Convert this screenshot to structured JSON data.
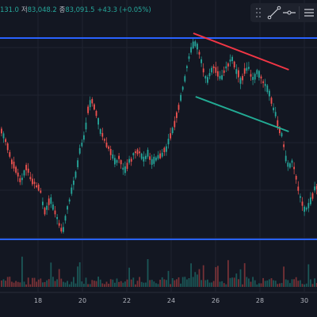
{
  "legend": {
    "value1": "131.0",
    "value2_label": "저",
    "value2": "83,048.2",
    "value3_label": "종",
    "value3": "83,091.5",
    "change": "+43.3 (+0.05%)"
  },
  "toolbar": {
    "items": [
      {
        "icon": "drag-handle-icon"
      },
      {
        "icon": "trend-line-icon"
      },
      {
        "icon": "horizontal-ray-icon"
      },
      {
        "icon": "menu-icon"
      }
    ]
  },
  "colors": {
    "background": "#131722",
    "up": "#26a69a",
    "down": "#ef5350",
    "level_line": "#2962ff",
    "resistance_line": "#f23645",
    "support_line": "#22ab94",
    "grid": "#1f2330"
  },
  "chart_data": {
    "type": "candlestick",
    "title": "",
    "xlabel": "",
    "ylabel": "",
    "x_ticks": [
      "18",
      "20",
      "22",
      "24",
      "26",
      "28",
      "30"
    ],
    "x_range": [
      "17",
      "30.5"
    ],
    "horizontal_levels": [
      "upper",
      "lower"
    ],
    "trendlines": [
      {
        "name": "resistance",
        "color": "#f23645",
        "from": {
          "day": 25.0,
          "level": "high"
        },
        "to": {
          "day": 29.3,
          "level": "descending"
        }
      },
      {
        "name": "support",
        "color": "#22ab94",
        "from": {
          "day": 25.0,
          "level": "mid"
        },
        "to": {
          "day": 29.3,
          "level": "descending"
        }
      }
    ],
    "has_volume": true,
    "grid": true
  }
}
